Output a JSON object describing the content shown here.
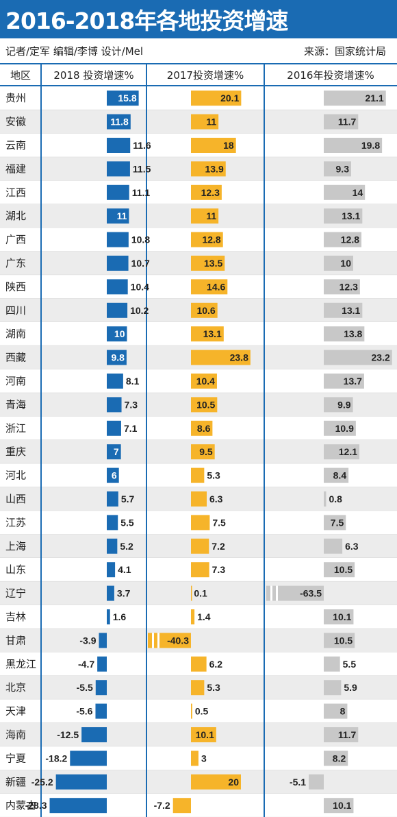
{
  "title": "2016-2018年各地投资增速",
  "credit": "记者/定军 编辑/李博 设计/Mel",
  "source": "来源：国家统计局",
  "headers": {
    "region": "地区",
    "y2018": "2018 投资增速%",
    "y2017": "2017投资增速%",
    "y2016": "2016年投资增速%"
  },
  "colors": {
    "y2018": "#1a6bb3",
    "y2017": "#f6b42a",
    "y2016": "#c8c8c8",
    "stripe": "#ececec",
    "divider": "#1a6bb3"
  },
  "chart_data": {
    "type": "bar",
    "categories": [
      "贵州",
      "安徽",
      "云南",
      "福建",
      "江西",
      "湖北",
      "广西",
      "广东",
      "陕西",
      "四川",
      "湖南",
      "西藏",
      "河南",
      "青海",
      "浙江",
      "重庆",
      "河北",
      "山西",
      "江苏",
      "上海",
      "山东",
      "辽宁",
      "吉林",
      "甘肃",
      "黑龙江",
      "北京",
      "天津",
      "海南",
      "宁夏",
      "新疆",
      "内蒙古"
    ],
    "series": [
      {
        "name": "2018 投资增速%",
        "values": [
          15.8,
          11.8,
          11.6,
          11.5,
          11.1,
          11,
          10.8,
          10.7,
          10.4,
          10.2,
          10,
          9.8,
          8.1,
          7.3,
          7.1,
          7,
          6,
          5.7,
          5.5,
          5.2,
          4.1,
          3.7,
          1.6,
          -3.9,
          -4.7,
          -5.5,
          -5.6,
          -12.5,
          -18.2,
          -25.2,
          -28.3
        ]
      },
      {
        "name": "2017投资增速%",
        "values": [
          20.1,
          11,
          18,
          13.9,
          12.3,
          11,
          12.8,
          13.5,
          14.6,
          10.6,
          13.1,
          23.8,
          10.4,
          10.5,
          8.6,
          9.5,
          5.3,
          6.3,
          7.5,
          7.2,
          7.3,
          0.1,
          1.4,
          -40.3,
          6.2,
          5.3,
          0.5,
          10.1,
          3,
          20,
          -7.2
        ]
      },
      {
        "name": "2016年投资增速%",
        "values": [
          21.1,
          11.7,
          19.8,
          9.3,
          14,
          13.1,
          12.8,
          10,
          12.3,
          13.1,
          13.8,
          23.2,
          13.7,
          9.9,
          10.9,
          12.1,
          8.4,
          0.8,
          7.5,
          6.3,
          10.5,
          -63.5,
          10.1,
          10.5,
          5.5,
          5.9,
          8,
          11.7,
          8.2,
          -5.1,
          10.1
        ]
      }
    ],
    "xlabel": "",
    "ylabel": "",
    "grid": false
  }
}
